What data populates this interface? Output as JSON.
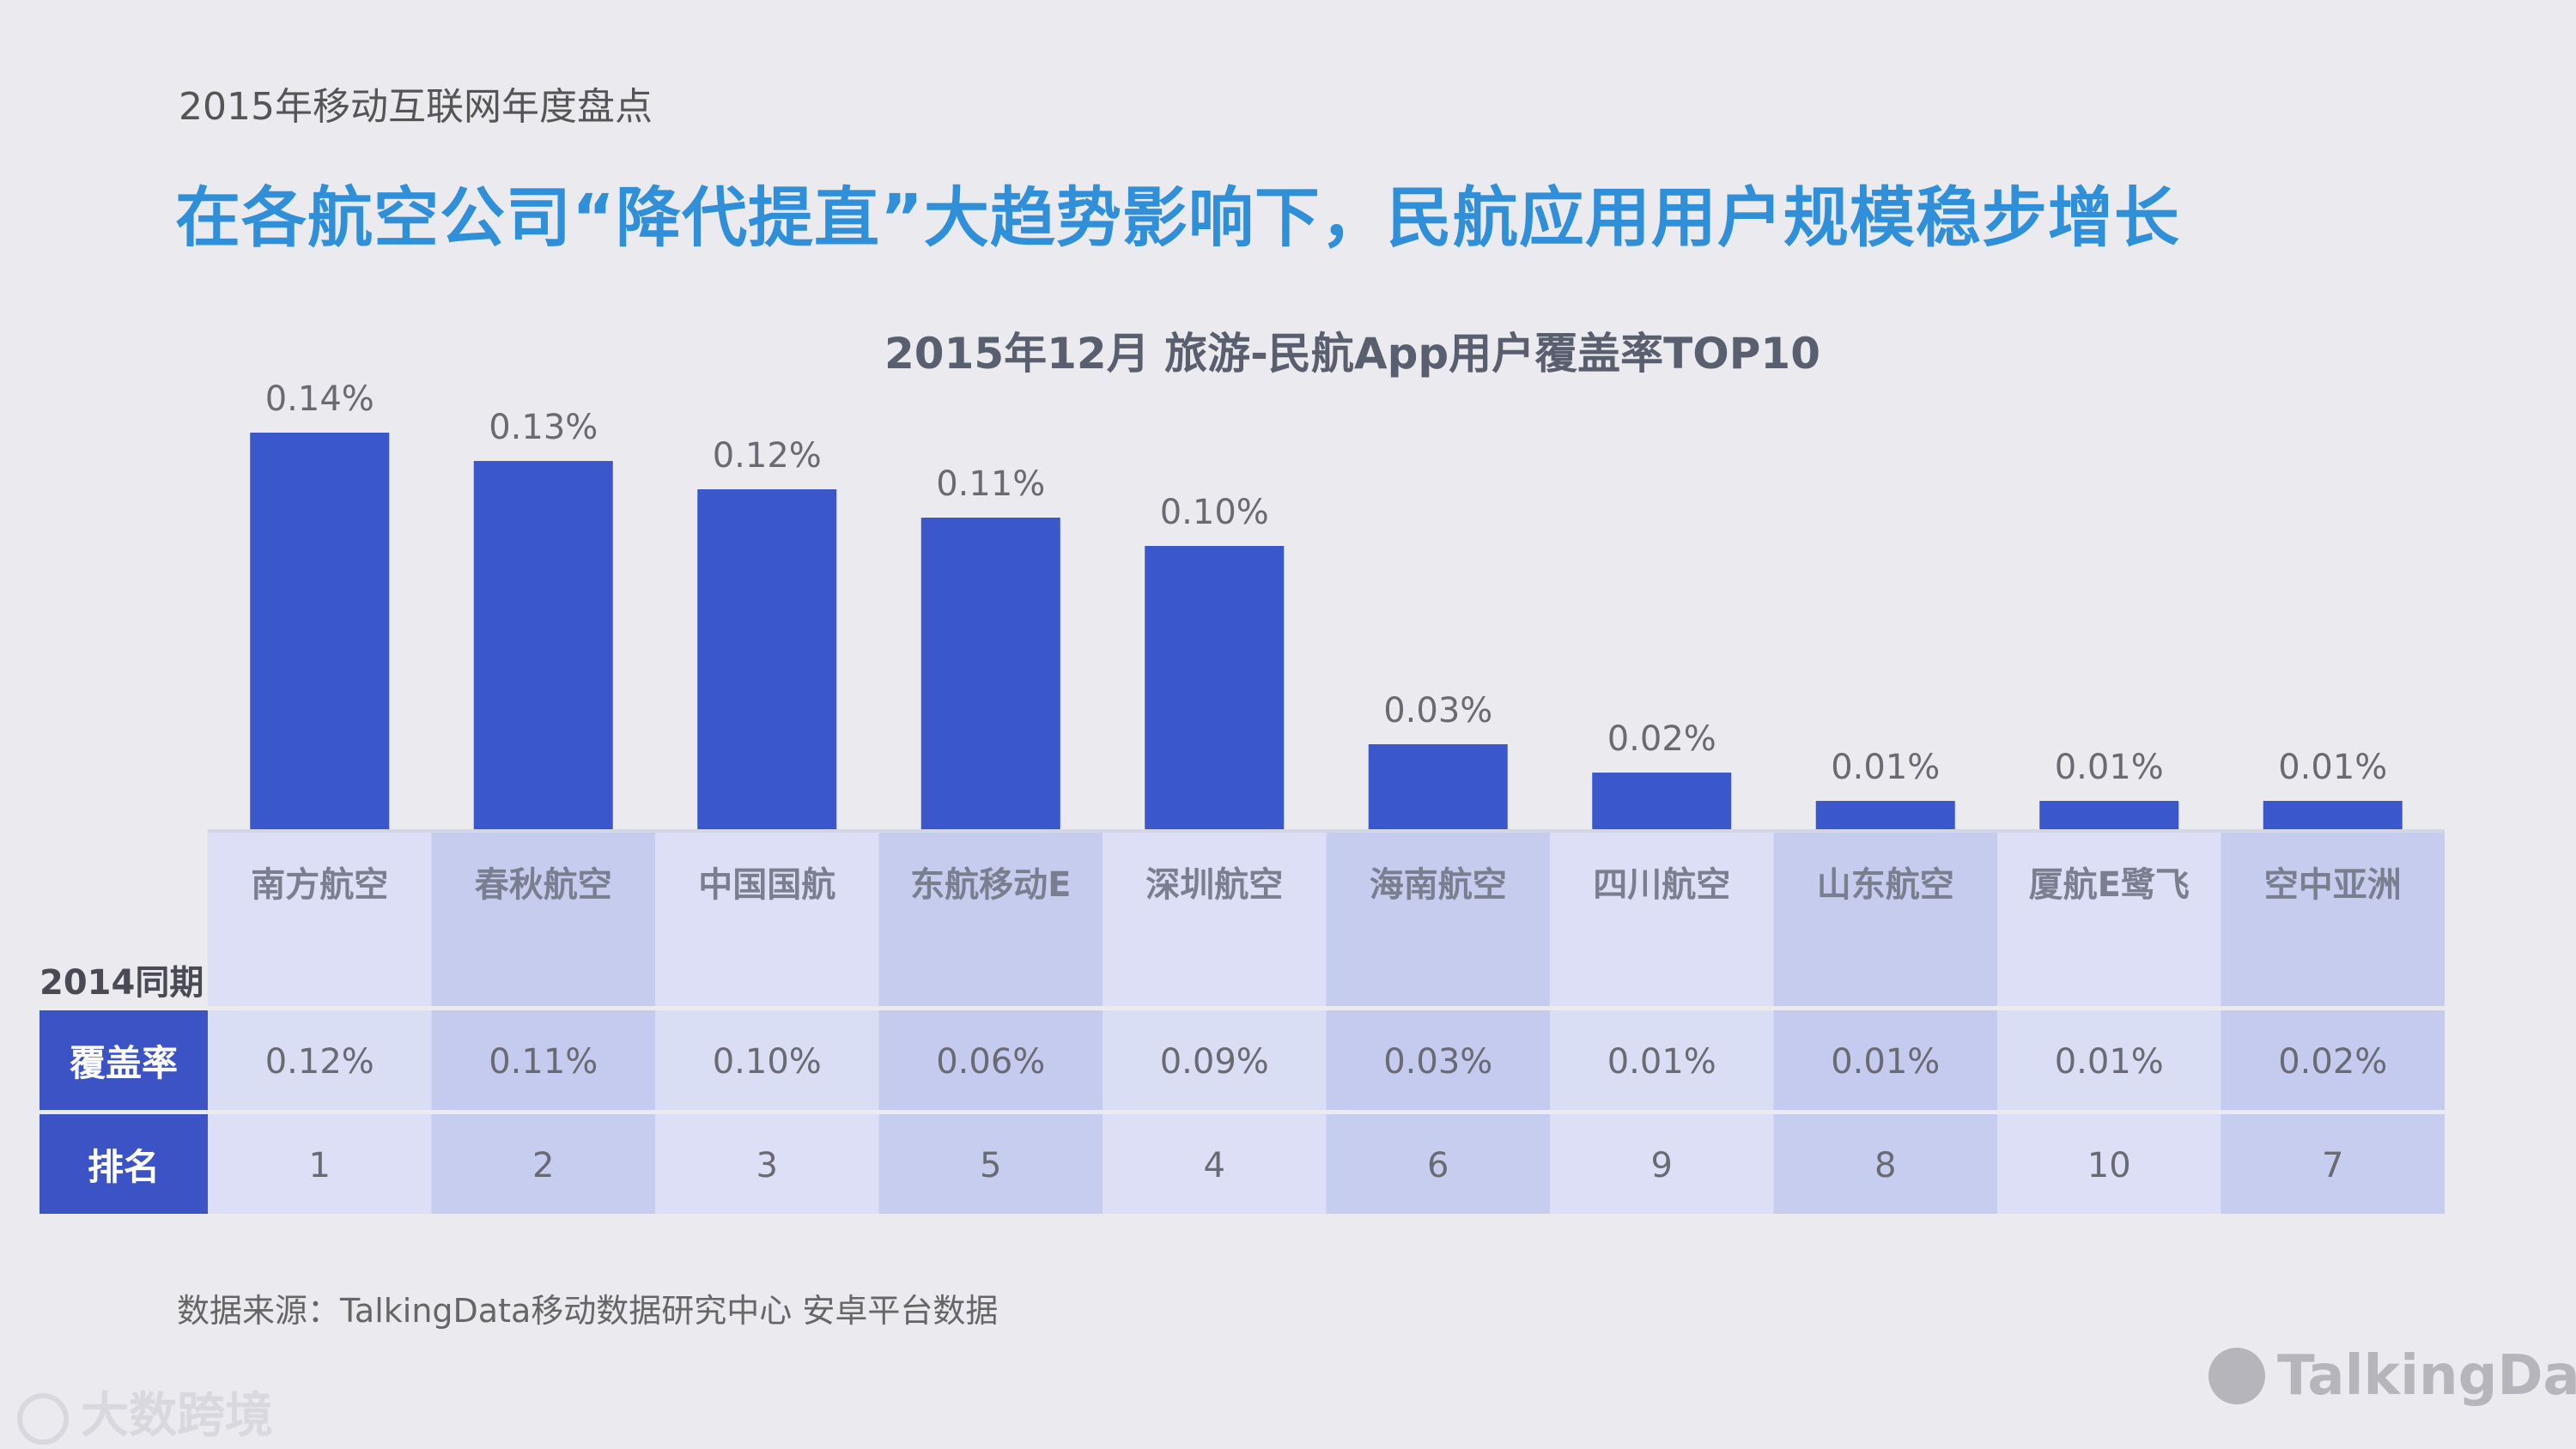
{
  "header": {
    "tag": "2015年移动互联网年度盘点",
    "title": "在各航空公司“降代提直”大趋势影响下，民航应用用户规模稳步增长"
  },
  "chart_data": {
    "type": "bar",
    "title": "2015年12月  旅游-民航App用户覆盖率TOP10",
    "categories": [
      "南方航空",
      "春秋航空",
      "中国国航",
      "东航移动E",
      "深圳航空",
      "海南航空",
      "四川航空",
      "山东航空",
      "厦航E鹭飞",
      "空中亚洲"
    ],
    "values": [
      0.14,
      0.13,
      0.12,
      0.11,
      0.1,
      0.03,
      0.02,
      0.01,
      0.01,
      0.01
    ],
    "value_labels": [
      "0.14%",
      "0.13%",
      "0.12%",
      "0.11%",
      "0.10%",
      "0.03%",
      "0.02%",
      "0.01%",
      "0.01%",
      "0.01%"
    ],
    "unit": "%",
    "ylim": [
      0,
      0.14
    ],
    "bar_color": "#3b57cc"
  },
  "table": {
    "group_label": "2014同期",
    "coverage_label": "覆盖率",
    "rank_label": "排名",
    "coverage": [
      "0.12%",
      "0.11%",
      "0.10%",
      "0.06%",
      "0.09%",
      "0.03%",
      "0.01%",
      "0.01%",
      "0.01%",
      "0.02%"
    ],
    "rank": [
      "1",
      "2",
      "3",
      "5",
      "4",
      "6",
      "9",
      "8",
      "10",
      "7"
    ]
  },
  "footer": {
    "source": "数据来源：TalkingData移动数据研究中心 安卓平台数据",
    "watermark_left": "大数跨境",
    "watermark_right": "TalkingData"
  }
}
